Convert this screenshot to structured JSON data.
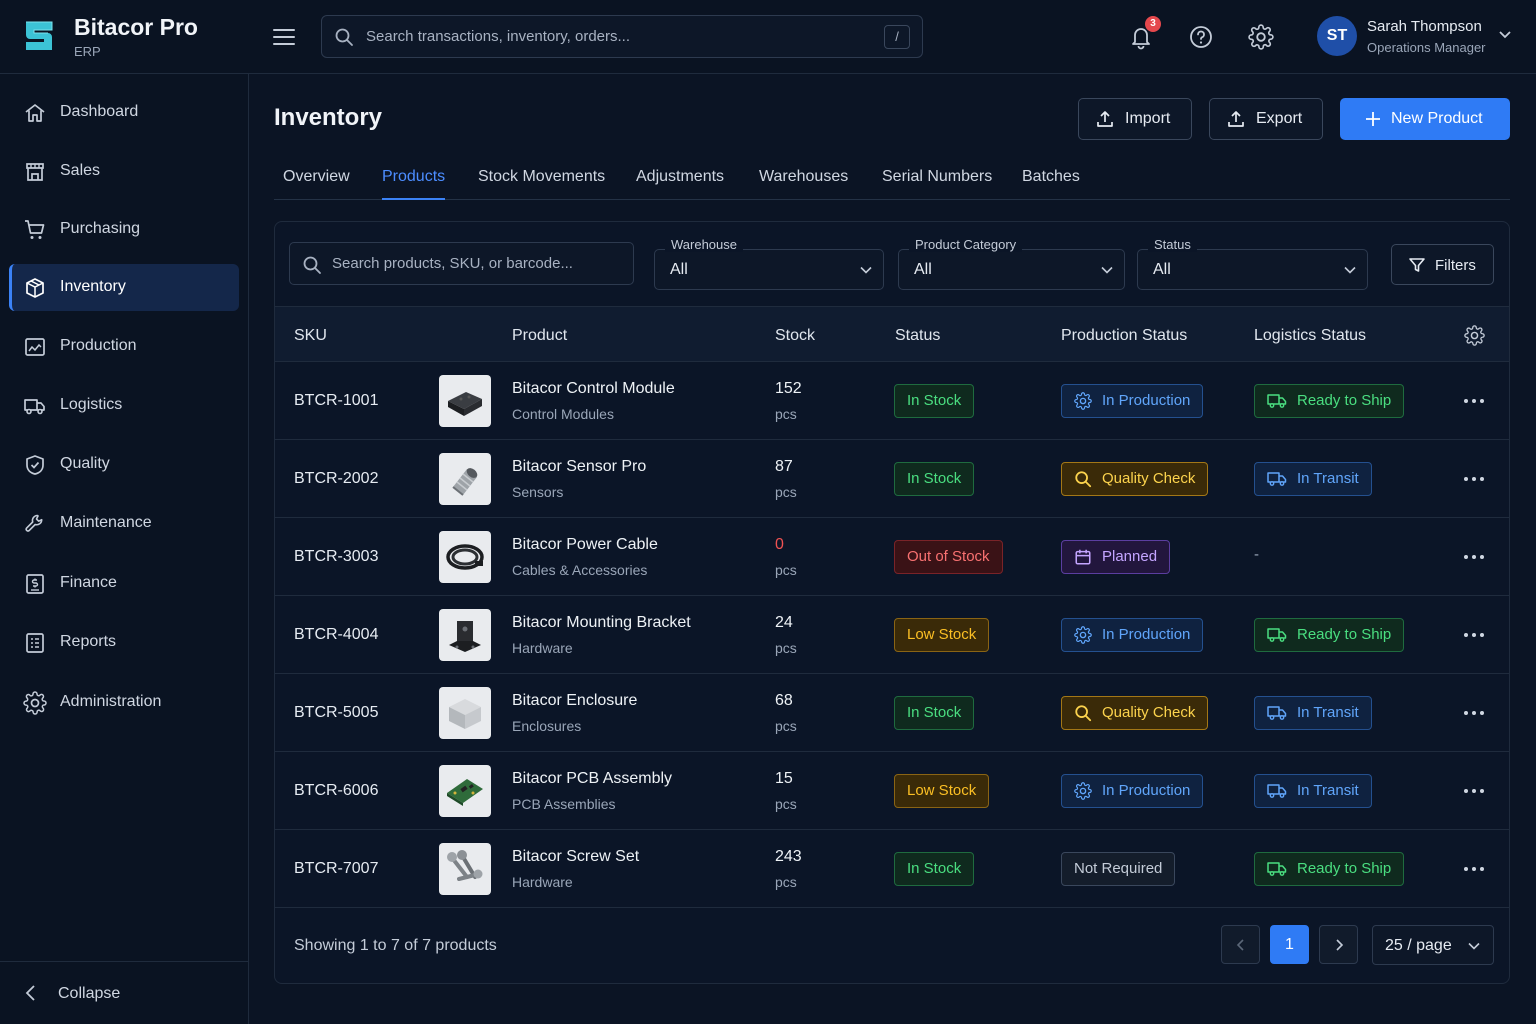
{
  "app": {
    "name": "Bitacor Pro",
    "subtitle": "ERP"
  },
  "search": {
    "placeholder": "Search transactions, inventory, orders...",
    "shortcut": "/"
  },
  "notifications": {
    "count": "3"
  },
  "user": {
    "initials": "ST",
    "name": "Sarah Thompson",
    "role": "Operations Manager"
  },
  "sidebar": {
    "items": [
      {
        "label": "Dashboard",
        "icon": "home-icon"
      },
      {
        "label": "Sales",
        "icon": "store-icon"
      },
      {
        "label": "Purchasing",
        "icon": "cart-icon"
      },
      {
        "label": "Inventory",
        "icon": "box-icon",
        "active": true
      },
      {
        "label": "Production",
        "icon": "factory-icon"
      },
      {
        "label": "Logistics",
        "icon": "truck-icon"
      },
      {
        "label": "Quality",
        "icon": "shield-check-icon"
      },
      {
        "label": "Maintenance",
        "icon": "wrench-icon"
      },
      {
        "label": "Finance",
        "icon": "finance-icon"
      },
      {
        "label": "Reports",
        "icon": "report-icon"
      },
      {
        "label": "Administration",
        "icon": "gear-icon"
      }
    ],
    "collapse_label": "Collapse"
  },
  "page": {
    "title": "Inventory"
  },
  "actions": {
    "import_label": "Import",
    "export_label": "Export",
    "new_label": "New Product"
  },
  "tabs": [
    "Overview",
    "Products",
    "Stock Movements",
    "Adjustments",
    "Warehouses",
    "Serial Numbers",
    "Batches"
  ],
  "active_tab": "Products",
  "filters": {
    "search_placeholder": "Search products, SKU, or barcode...",
    "warehouse": {
      "label": "Warehouse",
      "value": "All"
    },
    "category": {
      "label": "Product Category",
      "value": "All"
    },
    "status": {
      "label": "Status",
      "value": "All"
    },
    "button_label": "Filters"
  },
  "table": {
    "columns": [
      "SKU",
      "Product",
      "Stock",
      "Status",
      "Production Status",
      "Logistics Status"
    ],
    "rows": [
      {
        "sku": "BTCR-1001",
        "name": "Bitacor Control Module",
        "category": "Control Modules",
        "stock": "152",
        "unit": "pcs",
        "status": "In Stock",
        "status_kind": "green",
        "production": "In Production",
        "production_kind": "blue",
        "production_icon": "gear-icon",
        "logistics": "Ready to Ship",
        "logistics_kind": "lgreen",
        "image": "control-module-image"
      },
      {
        "sku": "BTCR-2002",
        "name": "Bitacor Sensor Pro",
        "category": "Sensors",
        "stock": "87",
        "unit": "pcs",
        "status": "In Stock",
        "status_kind": "green",
        "production": "Quality Check",
        "production_kind": "gold",
        "production_icon": "search-icon",
        "logistics": "In Transit",
        "logistics_kind": "lblue",
        "image": "sensor-image"
      },
      {
        "sku": "BTCR-3003",
        "name": "Bitacor Power Cable",
        "category": "Cables & Accessories",
        "stock": "0",
        "unit": "pcs",
        "status": "Out of Stock",
        "status_kind": "red",
        "production": "Planned",
        "production_kind": "purple",
        "production_icon": "calendar-icon",
        "logistics": "-",
        "logistics_kind": "none",
        "image": "cable-image"
      },
      {
        "sku": "BTCR-4004",
        "name": "Bitacor Mounting Bracket",
        "category": "Hardware",
        "stock": "24",
        "unit": "pcs",
        "status": "Low Stock",
        "status_kind": "amber",
        "production": "In Production",
        "production_kind": "blue",
        "production_icon": "gear-icon",
        "logistics": "Ready to Ship",
        "logistics_kind": "lgreen",
        "image": "bracket-image"
      },
      {
        "sku": "BTCR-5005",
        "name": "Bitacor Enclosure",
        "category": "Enclosures",
        "stock": "68",
        "unit": "pcs",
        "status": "In Stock",
        "status_kind": "green",
        "production": "Quality Check",
        "production_kind": "gold",
        "production_icon": "search-icon",
        "logistics": "In Transit",
        "logistics_kind": "lblue",
        "image": "enclosure-image"
      },
      {
        "sku": "BTCR-6006",
        "name": "Bitacor PCB Assembly",
        "category": "PCB Assemblies",
        "stock": "15",
        "unit": "pcs",
        "status": "Low Stock",
        "status_kind": "amber",
        "production": "In Production",
        "production_kind": "blue",
        "production_icon": "gear-icon",
        "logistics": "In Transit",
        "logistics_kind": "lblue",
        "image": "pcb-image"
      },
      {
        "sku": "BTCR-7007",
        "name": "Bitacor Screw Set",
        "category": "Hardware",
        "stock": "243",
        "unit": "pcs",
        "status": "In Stock",
        "status_kind": "green",
        "production": "Not Required",
        "production_kind": "gray",
        "production_icon": "",
        "logistics": "Ready to Ship",
        "logistics_kind": "lgreen",
        "image": "screws-image"
      }
    ]
  },
  "footer": {
    "showing": "Showing 1 to 7 of 7 products",
    "current_page": "1",
    "per_page": "25 / page"
  },
  "colors": {
    "accent": "#2f7bf5",
    "background": "#0b1424",
    "sidebar": "#0a1322",
    "in_stock": "#4ade80",
    "out_of_stock": "#f87171",
    "low_stock": "#fbbf24"
  }
}
